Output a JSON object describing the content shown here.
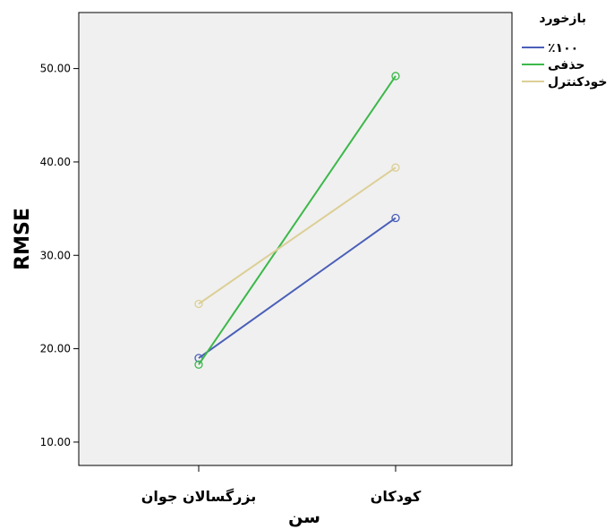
{
  "chart_data": {
    "type": "line",
    "categories": [
      "بزرگسالان جوان",
      "کودکان"
    ],
    "xlabel": "سن",
    "ylabel": "RMSE",
    "ylim": [
      7.5,
      56
    ],
    "yticks": [
      "10.00",
      "20.00",
      "30.00",
      "40.00",
      "50.00"
    ],
    "ytick_values": [
      10,
      20,
      30,
      40,
      50
    ],
    "grid": false,
    "legend_title": "بازخورد",
    "legend_position": "top-right",
    "series": [
      {
        "name": "٪۱۰۰",
        "values": [
          19.0,
          34.0
        ],
        "color": "#4a5fb8"
      },
      {
        "name": "حذفی",
        "values": [
          18.3,
          49.2
        ],
        "color": "#3cb84a"
      },
      {
        "name": "خودکنترل",
        "values": [
          24.8,
          39.4
        ],
        "color": "#dccf96"
      }
    ],
    "plot_background": "#f0f0f0"
  }
}
